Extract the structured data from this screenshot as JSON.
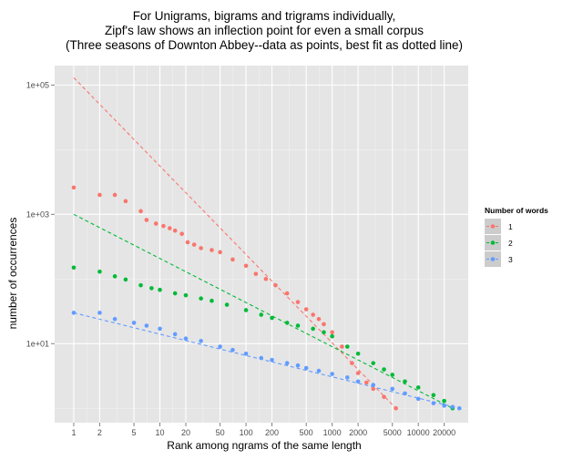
{
  "chart_data": {
    "type": "scatter",
    "title_lines": [
      "For Unigrams, bigrams and trigrams individually,",
      "Zipf's law shows an inflection point for even a small corpus",
      "(Three seasons of Downton Abbey--data as points, best fit as dotted line)"
    ],
    "xlabel": "Rank among ngrams of the same length",
    "ylabel": "number of occurrences",
    "x_scale": "log10",
    "y_scale": "log10",
    "xlim": [
      0.6,
      38000
    ],
    "ylim": [
      0.6,
      200000
    ],
    "x_ticks": [
      1,
      2,
      5,
      10,
      20,
      50,
      100,
      200,
      500,
      1000,
      2000,
      5000,
      10000,
      20000
    ],
    "x_tick_labels": [
      "1",
      "2",
      "5",
      "10",
      "20",
      "50",
      "100",
      "200",
      "500",
      "1000",
      "2000",
      "5000",
      "10000",
      "20000"
    ],
    "y_ticks": [
      10,
      1000,
      100000
    ],
    "y_tick_labels": [
      "1e+01",
      "1e+03",
      "1e+05"
    ],
    "grid": true,
    "legend_title": "Number of words",
    "legend_position": "right",
    "series": [
      {
        "name": "1",
        "color": "#F8766D",
        "points": [
          [
            1,
            2600
          ],
          [
            2,
            2000
          ],
          [
            3,
            2000
          ],
          [
            4,
            1600
          ],
          [
            6,
            1120
          ],
          [
            7,
            820
          ],
          [
            9,
            720
          ],
          [
            11,
            660
          ],
          [
            13,
            610
          ],
          [
            15,
            560
          ],
          [
            18,
            500
          ],
          [
            21,
            370
          ],
          [
            25,
            340
          ],
          [
            30,
            300
          ],
          [
            40,
            280
          ],
          [
            50,
            260
          ],
          [
            70,
            200
          ],
          [
            100,
            160
          ],
          [
            130,
            120
          ],
          [
            170,
            100
          ],
          [
            220,
            80
          ],
          [
            300,
            60
          ],
          [
            400,
            44
          ],
          [
            500,
            34
          ],
          [
            600,
            28
          ],
          [
            700,
            24
          ],
          [
            800,
            20
          ],
          [
            1000,
            15
          ],
          [
            1300,
            9
          ],
          [
            1700,
            5
          ],
          [
            2000,
            3.5
          ],
          [
            2500,
            2.5
          ],
          [
            3000,
            2
          ],
          [
            4000,
            1.5
          ],
          [
            5500,
            1
          ]
        ],
        "fit": [
          [
            1,
            130000
          ],
          [
            5500,
            1
          ]
        ]
      },
      {
        "name": "2",
        "color": "#00BA38",
        "points": [
          [
            1,
            150
          ],
          [
            2,
            130
          ],
          [
            3,
            110
          ],
          [
            4,
            98
          ],
          [
            6,
            80
          ],
          [
            8,
            72
          ],
          [
            10,
            68
          ],
          [
            15,
            60
          ],
          [
            20,
            56
          ],
          [
            30,
            50
          ],
          [
            40,
            46
          ],
          [
            60,
            40
          ],
          [
            100,
            33
          ],
          [
            150,
            28
          ],
          [
            200,
            25
          ],
          [
            300,
            21
          ],
          [
            400,
            19
          ],
          [
            600,
            17
          ],
          [
            800,
            15
          ],
          [
            1000,
            13
          ],
          [
            1500,
            9
          ],
          [
            2000,
            7
          ],
          [
            3000,
            5
          ],
          [
            4000,
            4
          ],
          [
            5000,
            3.3
          ],
          [
            7000,
            2.6
          ],
          [
            10000,
            2.1
          ],
          [
            15000,
            1.6
          ],
          [
            20000,
            1.3
          ],
          [
            25000,
            1
          ]
        ],
        "fit": [
          [
            1,
            1000
          ],
          [
            25000,
            1
          ]
        ]
      },
      {
        "name": "3",
        "color": "#619CFF",
        "points": [
          [
            1,
            30
          ],
          [
            2,
            30
          ],
          [
            3,
            24
          ],
          [
            5,
            21
          ],
          [
            7,
            19
          ],
          [
            10,
            17
          ],
          [
            15,
            14
          ],
          [
            20,
            12
          ],
          [
            30,
            11
          ],
          [
            50,
            9
          ],
          [
            70,
            8
          ],
          [
            100,
            7
          ],
          [
            150,
            6
          ],
          [
            200,
            5.6
          ],
          [
            300,
            5
          ],
          [
            400,
            4.6
          ],
          [
            500,
            4.2
          ],
          [
            700,
            3.8
          ],
          [
            1000,
            3.4
          ],
          [
            1500,
            3
          ],
          [
            2000,
            2.6
          ],
          [
            3000,
            2.3
          ],
          [
            5000,
            2
          ],
          [
            7000,
            1.7
          ],
          [
            10000,
            1.4
          ],
          [
            15000,
            1.2
          ],
          [
            20000,
            1.1
          ],
          [
            25000,
            1.05
          ],
          [
            30000,
            1
          ]
        ],
        "fit": [
          [
            1,
            30
          ],
          [
            30000,
            1
          ]
        ]
      }
    ]
  }
}
